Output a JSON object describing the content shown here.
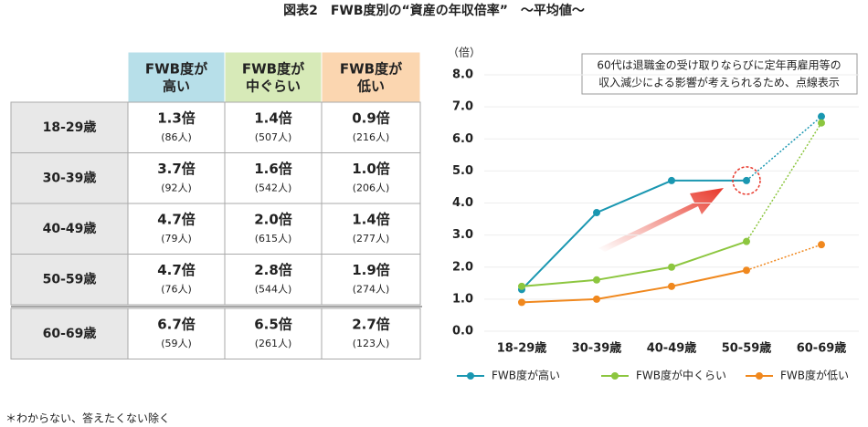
{
  "title": "図表2　FWB度別の“資産の年収倍率”　～平均値～",
  "table": {
    "headers": [
      [
        "FWB度が",
        "高い"
      ],
      [
        "FWB度が",
        "中ぐらい"
      ],
      [
        "FWB度が",
        "低い"
      ]
    ],
    "rows": [
      {
        "label": "18-29歳",
        "cells": [
          {
            "value": "1.3倍",
            "count": "(86人)"
          },
          {
            "value": "1.4倍",
            "count": "(507人)"
          },
          {
            "value": "0.9倍",
            "count": "(216人)"
          }
        ]
      },
      {
        "label": "30-39歳",
        "cells": [
          {
            "value": "3.7倍",
            "count": "(92人)"
          },
          {
            "value": "1.6倍",
            "count": "(542人)"
          },
          {
            "value": "1.0倍",
            "count": "(206人)"
          }
        ]
      },
      {
        "label": "40-49歳",
        "cells": [
          {
            "value": "4.7倍",
            "count": "(79人)"
          },
          {
            "value": "2.0倍",
            "count": "(615人)"
          },
          {
            "value": "1.4倍",
            "count": "(277人)"
          }
        ]
      },
      {
        "label": "50-59歳",
        "cells": [
          {
            "value": "4.7倍",
            "count": "(76人)"
          },
          {
            "value": "2.8倍",
            "count": "(544人)"
          },
          {
            "value": "1.9倍",
            "count": "(274人)"
          }
        ]
      },
      {
        "label": "60-69歳",
        "cells": [
          {
            "value": "6.7倍",
            "count": "(59人)"
          },
          {
            "value": "6.5倍",
            "count": "(261人)"
          },
          {
            "value": "2.7倍",
            "count": "(123人)"
          }
        ]
      }
    ]
  },
  "note": "＊わからない、答えたくない除く",
  "chart_data": {
    "type": "line",
    "y_unit": "（倍）",
    "annotation": [
      "60代は退職金の受け取りならびに定年再雇用等の",
      "収入減少による影響が考えられるため、点線表示"
    ],
    "categories": [
      "18-29歳",
      "30-39歳",
      "40-49歳",
      "50-59歳",
      "60-69歳"
    ],
    "series": [
      {
        "name": "FWB度が高い",
        "color": "#1a97b1",
        "values": [
          1.3,
          3.7,
          4.7,
          4.7,
          6.7
        ]
      },
      {
        "name": "FWB度が中くらい",
        "color": "#8cc63f",
        "values": [
          1.4,
          1.6,
          2.0,
          2.8,
          6.5
        ]
      },
      {
        "name": "FWB度が低い",
        "color": "#f0881e",
        "values": [
          0.9,
          1.0,
          1.4,
          1.9,
          2.7
        ]
      }
    ],
    "ylim": [
      0,
      8
    ],
    "yticks": [
      {
        "value": 0,
        "label": "0.0"
      },
      {
        "value": 1,
        "label": "1.0"
      },
      {
        "value": 2,
        "label": "2.0"
      },
      {
        "value": 3,
        "label": "3.0"
      },
      {
        "value": 4,
        "label": "4.0"
      },
      {
        "value": 5,
        "label": "5.0"
      },
      {
        "value": 6,
        "label": "6.0"
      },
      {
        "value": 7,
        "label": "7.0"
      },
      {
        "value": 8,
        "label": "8.0"
      }
    ],
    "grid": true,
    "dotted_last_segment": true
  }
}
